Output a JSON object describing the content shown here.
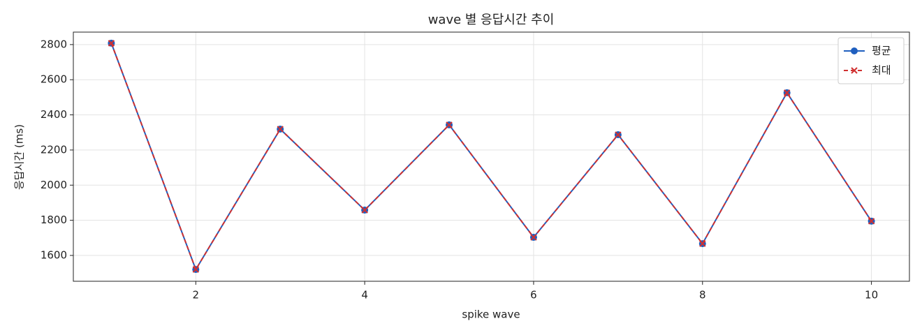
{
  "chart_data": {
    "type": "line",
    "title": "wave 별 응답시간 추이",
    "x_label": "spike wave",
    "y_label": "응답시간 (ms)",
    "x": [
      1,
      2,
      3,
      4,
      5,
      6,
      7,
      8,
      9,
      10
    ],
    "series": [
      {
        "name": "평균",
        "color": "#1f5fbf",
        "values": [
          2808,
          1520,
          2319,
          1858,
          2343,
          1703,
          2287,
          1667,
          2526,
          1795
        ]
      },
      {
        "name": "최대",
        "color": "#d03030",
        "values": [
          2808,
          1520,
          2319,
          1858,
          2343,
          1703,
          2287,
          1667,
          2526,
          1795
        ]
      }
    ],
    "xlim": [
      0.55,
      10.45
    ],
    "ylim": [
      1453,
      2871
    ],
    "xticks": [
      2,
      4,
      6,
      8,
      10
    ],
    "yticks": [
      1600,
      1800,
      2000,
      2200,
      2400,
      2600,
      2800
    ],
    "grid": true,
    "legend": "upper right"
  }
}
